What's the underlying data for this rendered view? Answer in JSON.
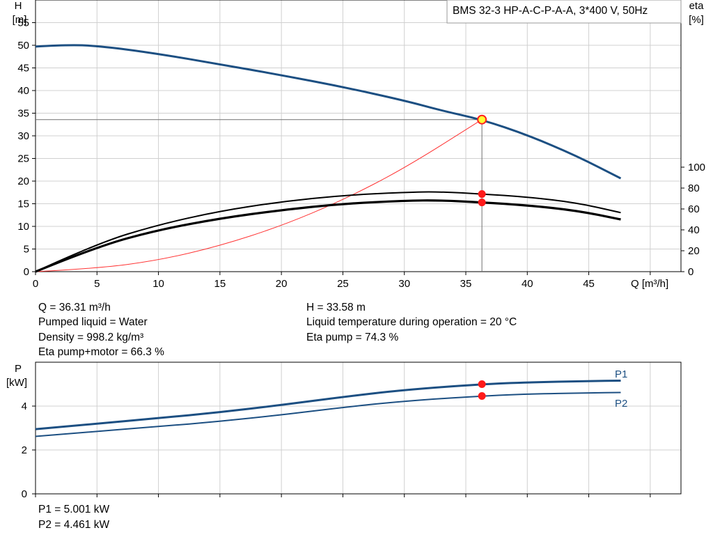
{
  "chart_data": [
    {
      "type": "line",
      "title": "BMS 32-3 HP-A-C-P-A-A, 3*400 V, 50Hz",
      "ylabel": "H",
      "yunit": "[m]",
      "y2label": "eta",
      "y2unit": "[%]",
      "xlabel": "Q [m³/h]",
      "xlim": [
        0,
        52.5
      ],
      "ylim": [
        0,
        60
      ],
      "y2lim": [
        0,
        100
      ],
      "x_ticks": [
        0,
        5,
        10,
        15,
        20,
        25,
        30,
        35,
        40,
        45
      ],
      "y_ticks": [
        0,
        5,
        10,
        15,
        20,
        25,
        30,
        35,
        40,
        45,
        50,
        55
      ],
      "y2_ticks": [
        0,
        20,
        40,
        60,
        80,
        100
      ],
      "grid": true,
      "colors": {
        "head": "#1c4f82",
        "eta": "#000000",
        "system": "#ff3333",
        "marker": "#ff1a1a"
      },
      "series": [
        {
          "axis": "left",
          "points": [
            [
              0,
              49.7
            ],
            [
              3,
              50.2
            ],
            [
              6,
              49.6
            ],
            [
              10,
              48.1
            ],
            [
              15,
              45.8
            ],
            [
              20,
              43.4
            ],
            [
              25,
              40.8
            ],
            [
              30,
              37.8
            ],
            [
              33,
              35.6
            ],
            [
              36.3,
              33.58
            ],
            [
              40,
              30.2
            ],
            [
              44,
              25.6
            ],
            [
              47.6,
              20.6
            ]
          ]
        },
        {
          "axis": "right",
          "points": [
            [
              0,
              0
            ],
            [
              5,
              27
            ],
            [
              10,
              45
            ],
            [
              15,
              58
            ],
            [
              20,
              67
            ],
            [
              25,
              73
            ],
            [
              30,
              76
            ],
            [
              33,
              76.5
            ],
            [
              36.3,
              74.3
            ],
            [
              40,
              71.5
            ],
            [
              44,
              66
            ],
            [
              47.6,
              56.5
            ]
          ]
        },
        {
          "axis": "right",
          "points": [
            [
              0,
              0
            ],
            [
              5,
              24
            ],
            [
              10,
              40
            ],
            [
              15,
              51
            ],
            [
              20,
              59
            ],
            [
              25,
              65
            ],
            [
              30,
              68
            ],
            [
              33,
              68.3
            ],
            [
              36.3,
              66.3
            ],
            [
              40,
              63.5
            ],
            [
              44,
              58.5
            ],
            [
              47.6,
              50
            ]
          ]
        },
        {
          "axis": "left",
          "points": [
            [
              0,
              0
            ],
            [
              5,
              0.7
            ],
            [
              10,
              2.5
            ],
            [
              15,
              5.7
            ],
            [
              20,
              10.1
            ],
            [
              25,
              15.8
            ],
            [
              30,
              22.8
            ],
            [
              36.3,
              33.58
            ]
          ]
        }
      ],
      "duty_point": {
        "Q": 36.31,
        "H": 33.58,
        "eta_pump": 74.3,
        "eta_total": 66.3
      }
    },
    {
      "type": "line",
      "ylabel": "P",
      "yunit": "[kW]",
      "xlim": [
        0,
        52.5
      ],
      "ylim": [
        0,
        6
      ],
      "y_ticks": [
        0,
        2,
        4
      ],
      "grid": true,
      "series": [
        {
          "name": "P1",
          "points": [
            [
              0,
              2.95
            ],
            [
              5,
              3.2
            ],
            [
              10,
              3.45
            ],
            [
              15,
              3.72
            ],
            [
              20,
              4.05
            ],
            [
              25,
              4.42
            ],
            [
              30,
              4.74
            ],
            [
              36.3,
              5.001
            ],
            [
              40,
              5.08
            ],
            [
              45,
              5.14
            ],
            [
              47.6,
              5.16
            ]
          ]
        },
        {
          "name": "P2",
          "points": [
            [
              0,
              2.62
            ],
            [
              5,
              2.85
            ],
            [
              10,
              3.07
            ],
            [
              15,
              3.3
            ],
            [
              20,
              3.6
            ],
            [
              25,
              3.94
            ],
            [
              30,
              4.23
            ],
            [
              36.3,
              4.461
            ],
            [
              40,
              4.55
            ],
            [
              45,
              4.6
            ],
            [
              47.6,
              4.62
            ]
          ]
        }
      ]
    }
  ],
  "readout": {
    "q": "Q = 36.31 m³/h",
    "h": "H = 33.58 m",
    "liquid": "Pumped liquid = Water",
    "temp": "Liquid temperature during operation = 20 °C",
    "density": "Density = 998.2 kg/m³",
    "eta_pump": "Eta pump = 74.3 %",
    "eta_total": "Eta pump+motor = 66.3 %",
    "p1": "P1 = 5.001 kW",
    "p2": "P2 = 4.461 kW"
  }
}
